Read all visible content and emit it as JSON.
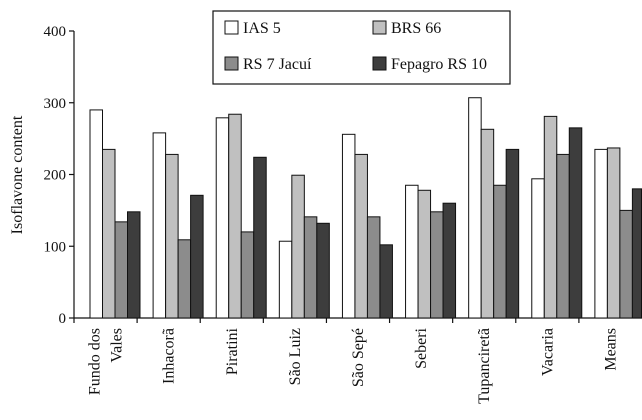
{
  "chart_data": {
    "type": "bar",
    "ylabel": "Isoflavone content",
    "xlabel": "",
    "ylim": [
      0,
      400
    ],
    "yticks": [
      0,
      100,
      200,
      300,
      400
    ],
    "grid": false,
    "legend_position": "top-center",
    "categories": [
      [
        "Fundo dos",
        "Vales"
      ],
      [
        "Inhacorã"
      ],
      [
        "Piratini"
      ],
      [
        "São Luiz"
      ],
      [
        "São Sepé"
      ],
      [
        "Seberi"
      ],
      [
        "Tupanciretã"
      ],
      [
        "Vacaria"
      ],
      [
        "Means"
      ]
    ],
    "series": [
      {
        "name": "IAS 5",
        "color": "#ffffff",
        "values": [
          290,
          258,
          279,
          107,
          256,
          185,
          307,
          194,
          235
        ]
      },
      {
        "name": "BRS 66",
        "color": "#c0c0c0",
        "values": [
          235,
          228,
          284,
          199,
          228,
          178,
          263,
          281,
          237
        ]
      },
      {
        "name": "RS 7 Jacuí",
        "color": "#8c8c8c",
        "values": [
          134,
          109,
          120,
          141,
          141,
          148,
          185,
          228,
          150
        ]
      },
      {
        "name": "Fepagro RS 10",
        "color": "#3d3d3d",
        "values": [
          148,
          171,
          224,
          132,
          102,
          160,
          235,
          265,
          180
        ]
      }
    ]
  }
}
